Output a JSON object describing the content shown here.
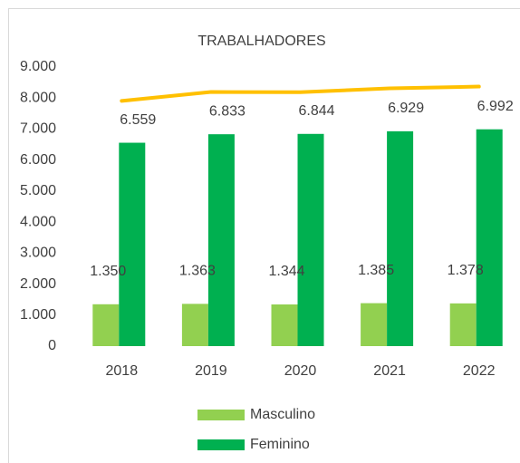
{
  "chart_data": {
    "type": "bar",
    "title": "TRABALHADORES",
    "categories": [
      "2018",
      "2019",
      "2020",
      "2021",
      "2022"
    ],
    "series": [
      {
        "name": "Masculino",
        "color": "#92d050",
        "values": [
          1350,
          1363,
          1344,
          1385,
          1378
        ],
        "value_labels": [
          "1.350",
          "1.363",
          "1.344",
          "1.385",
          "1.378"
        ]
      },
      {
        "name": "Feminino",
        "color": "#00b050",
        "values": [
          6559,
          6833,
          6844,
          6929,
          6992
        ],
        "value_labels": [
          "6.559",
          "6.833",
          "6.844",
          "6.929",
          "6.992"
        ]
      },
      {
        "type": "line",
        "color": "#ffc000",
        "values": [
          7909,
          8196,
          8188,
          8314,
          8370
        ]
      }
    ],
    "ylim": [
      0,
      9000
    ],
    "yticks": [
      0,
      {
        "value": 1000,
        "label": "1.000"
      },
      {
        "value": 2000,
        "label": "2.000"
      },
      {
        "value": 3000,
        "label": "3.000"
      },
      {
        "value": 4000,
        "label": "4.000"
      },
      {
        "value": 5000,
        "label": "5.000"
      },
      {
        "value": 6000,
        "label": "6.000"
      },
      {
        "value": 7000,
        "label": "7.000"
      },
      {
        "value": 8000,
        "label": "8.000"
      },
      {
        "value": 9000,
        "label": "9.000"
      }
    ],
    "legend": "bottom"
  }
}
